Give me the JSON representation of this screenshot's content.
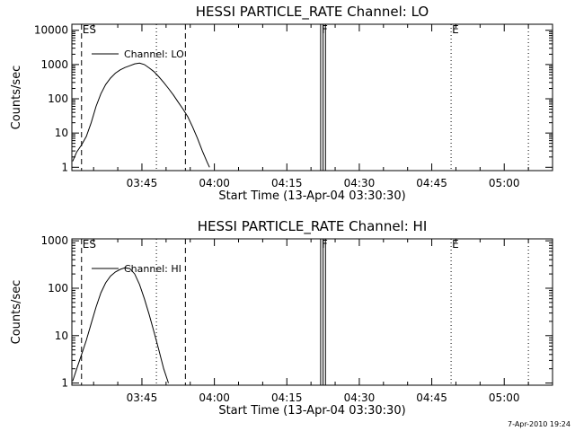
{
  "chart_data": [
    {
      "type": "line",
      "title": "HESSI PARTICLE_RATE Channel: LO",
      "xlabel": "Start Time (13-Apr-04 03:30:30)",
      "ylabel": "Counts/sec",
      "yscale": "log",
      "ylim": [
        0.8,
        15000
      ],
      "xlim": [
        "03:30:30",
        "05:10:00"
      ],
      "x_tick_labels": [
        "03:45",
        "04:00",
        "04:15",
        "04:30",
        "04:45",
        "05:00"
      ],
      "y_tick_labels": [
        "1",
        "10",
        "100",
        "1000",
        "10000"
      ],
      "y_tick_values": [
        1,
        10,
        100,
        1000,
        10000
      ],
      "legend": {
        "label": "Channel: LO",
        "position": "top-left"
      },
      "markers": [
        {
          "time": "03:32:30",
          "label": "ES",
          "style": "dashed"
        },
        {
          "time": "03:48:00",
          "label": "",
          "style": "dotted"
        },
        {
          "time": "03:54:00",
          "label": "",
          "style": "dashed"
        },
        {
          "time": "04:22:00",
          "label": "F",
          "style": "solid"
        },
        {
          "time": "04:22:30",
          "label": "",
          "style": "solid"
        },
        {
          "time": "04:23:00",
          "label": "",
          "style": "solid"
        },
        {
          "time": "04:49:00",
          "label": "E",
          "style": "dotted"
        },
        {
          "time": "05:05:00",
          "label": "",
          "style": "dotted"
        }
      ],
      "series": [
        {
          "name": "Channel: LO",
          "points": [
            [
              "03:30:40",
              1.5
            ],
            [
              "03:31:30",
              2.8
            ],
            [
              "03:32:30",
              4.5
            ],
            [
              "03:33:30",
              8
            ],
            [
              "03:34:30",
              20
            ],
            [
              "03:35:30",
              60
            ],
            [
              "03:36:30",
              140
            ],
            [
              "03:37:30",
              260
            ],
            [
              "03:38:30",
              400
            ],
            [
              "03:39:30",
              560
            ],
            [
              "03:40:30",
              700
            ],
            [
              "03:41:30",
              820
            ],
            [
              "03:42:30",
              920
            ],
            [
              "03:43:30",
              1050
            ],
            [
              "03:44:30",
              1100
            ],
            [
              "03:45:30",
              1000
            ],
            [
              "03:46:30",
              800
            ],
            [
              "03:47:30",
              620
            ],
            [
              "03:48:30",
              440
            ],
            [
              "03:49:30",
              300
            ],
            [
              "03:50:30",
              200
            ],
            [
              "03:51:30",
              130
            ],
            [
              "03:52:30",
              80
            ],
            [
              "03:53:30",
              50
            ],
            [
              "03:54:30",
              30
            ],
            [
              "03:55:30",
              15
            ],
            [
              "03:56:30",
              7
            ],
            [
              "03:57:30",
              3
            ],
            [
              "03:58:30",
              1.4
            ],
            [
              "03:59:00",
              1
            ]
          ]
        }
      ]
    },
    {
      "type": "line",
      "title": "HESSI PARTICLE_RATE Channel: HI",
      "xlabel": "Start Time (13-Apr-04 03:30:30)",
      "ylabel": "Counts/sec",
      "yscale": "log",
      "ylim": [
        0.9,
        1100
      ],
      "xlim": [
        "03:30:30",
        "05:10:00"
      ],
      "x_tick_labels": [
        "03:45",
        "04:00",
        "04:15",
        "04:30",
        "04:45",
        "05:00"
      ],
      "y_tick_labels": [
        "1",
        "10",
        "100",
        "1000"
      ],
      "y_tick_values": [
        1,
        10,
        100,
        1000
      ],
      "legend": {
        "label": "Channel: HI",
        "position": "top-left"
      },
      "markers": [
        {
          "time": "03:32:30",
          "label": "ES",
          "style": "dashed"
        },
        {
          "time": "03:48:00",
          "label": "",
          "style": "dotted"
        },
        {
          "time": "03:54:00",
          "label": "",
          "style": "dashed"
        },
        {
          "time": "04:22:00",
          "label": "F",
          "style": "solid"
        },
        {
          "time": "04:22:30",
          "label": "",
          "style": "solid"
        },
        {
          "time": "04:23:00",
          "label": "",
          "style": "solid"
        },
        {
          "time": "04:49:00",
          "label": "E",
          "style": "dotted"
        },
        {
          "time": "05:05:00",
          "label": "",
          "style": "dotted"
        }
      ],
      "series": [
        {
          "name": "Channel: HI",
          "points": [
            [
              "03:30:40",
              1.1
            ],
            [
              "03:31:30",
              2
            ],
            [
              "03:32:30",
              4
            ],
            [
              "03:33:30",
              8
            ],
            [
              "03:34:30",
              18
            ],
            [
              "03:35:30",
              40
            ],
            [
              "03:36:30",
              80
            ],
            [
              "03:37:30",
              130
            ],
            [
              "03:38:30",
              180
            ],
            [
              "03:39:30",
              220
            ],
            [
              "03:40:30",
              250
            ],
            [
              "03:41:30",
              270
            ],
            [
              "03:42:30",
              260
            ],
            [
              "03:43:30",
              200
            ],
            [
              "03:44:30",
              120
            ],
            [
              "03:45:30",
              60
            ],
            [
              "03:46:30",
              28
            ],
            [
              "03:47:30",
              12
            ],
            [
              "03:48:30",
              5
            ],
            [
              "03:49:30",
              2
            ],
            [
              "03:50:30",
              1
            ]
          ]
        }
      ]
    }
  ],
  "footer": {
    "stamp": "7-Apr-2010 19:24"
  }
}
